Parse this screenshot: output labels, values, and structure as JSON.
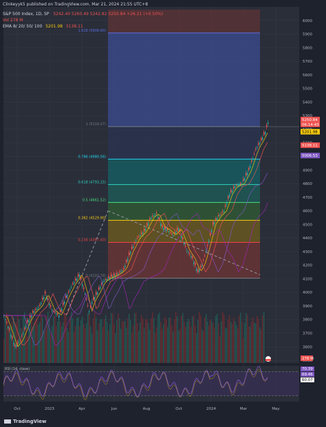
{
  "header": {
    "published": "Clinkeyyk5 published on TradingView.com, Mar 21, 2024 21:55 UTC+8",
    "symbol": "S&P 500 Index, 1D, SP",
    "ohlc": "5242.40  5260.49  5242.82  5250.84  +26.21 (+0.50%)",
    "vol": "Vol  278 M",
    "ema_label": "EMA 8/ 20/ 50/ 100",
    "ema_values": [
      "5201.98",
      "5138.11"
    ]
  },
  "brand": "TradingView",
  "colors": {
    "bg": "#1e222d",
    "grid": "#2a2e39",
    "up": "#26a69a",
    "down": "#ef5350"
  },
  "chart_data": [
    {
      "type": "candlestick",
      "title": "S&P 500 Index, 1D",
      "x": [
        "Oct",
        "2023",
        "Apr",
        "Jun",
        "Aug",
        "Oct",
        "2024",
        "Mar",
        "May"
      ],
      "ylim": [
        3480,
        6100
      ],
      "y_ticks": [
        3500,
        3600,
        3700,
        3800,
        3900,
        4000,
        4100,
        4200,
        4300,
        4400,
        4500,
        4600,
        4700,
        4800,
        4900,
        5000,
        5100,
        5200,
        5300,
        5400,
        5500,
        5600,
        5700,
        5800,
        5900,
        6000
      ],
      "fibonacci": [
        {
          "ratio": "1.618",
          "value": 5908.6,
          "color": "#5b6ee1"
        },
        {
          "ratio": "1",
          "value": 5219.27,
          "color": "#787b86"
        },
        {
          "ratio": "0.786",
          "value": 4980.56,
          "color": "#22d3ee"
        },
        {
          "ratio": "0.618",
          "value": 4793.15,
          "color": "#2dd4bf"
        },
        {
          "ratio": "0.5",
          "value": 4661.52,
          "color": "#4ade80"
        },
        {
          "ratio": "0.382",
          "value": 4529.9,
          "color": "#facc15"
        },
        {
          "ratio": "0.236",
          "value": 4367.4,
          "color": "#ef4444"
        },
        {
          "ratio": "0",
          "value": 4103.78,
          "color": "#787b86"
        }
      ],
      "price_labels": [
        {
          "value": 5250.84,
          "text": "5250.84",
          "sub": "06:14:43",
          "color": "#ef5350"
        },
        {
          "value": 5201.98,
          "text": "5201.98",
          "color": "#f6c90e"
        },
        {
          "value": 5138.11,
          "text": "5138.11",
          "color": "#ef5350"
        },
        {
          "value": 5006.53,
          "text": "5006.53",
          "color": "#7e57c2"
        }
      ],
      "close_path": [
        [
          0,
          3830
        ],
        [
          8,
          3720
        ],
        [
          16,
          3600
        ],
        [
          24,
          3650
        ],
        [
          34,
          3780
        ],
        [
          42,
          3850
        ],
        [
          52,
          3900
        ],
        [
          60,
          3990
        ],
        [
          70,
          3870
        ],
        [
          80,
          3830
        ],
        [
          90,
          3960
        ],
        [
          100,
          4060
        ],
        [
          110,
          4130
        ],
        [
          118,
          3990
        ],
        [
          124,
          3860
        ],
        [
          128,
          3930
        ],
        [
          136,
          4000
        ],
        [
          144,
          4080
        ],
        [
          154,
          4110
        ],
        [
          164,
          4130
        ],
        [
          174,
          4170
        ],
        [
          184,
          4300
        ],
        [
          194,
          4400
        ],
        [
          204,
          4450
        ],
        [
          214,
          4550
        ],
        [
          222,
          4580
        ],
        [
          230,
          4480
        ],
        [
          238,
          4460
        ],
        [
          246,
          4420
        ],
        [
          254,
          4470
        ],
        [
          260,
          4390
        ],
        [
          266,
          4310
        ],
        [
          274,
          4250
        ],
        [
          282,
          4150
        ],
        [
          288,
          4200
        ],
        [
          296,
          4340
        ],
        [
          304,
          4500
        ],
        [
          312,
          4560
        ],
        [
          320,
          4600
        ],
        [
          328,
          4720
        ],
        [
          336,
          4780
        ],
        [
          346,
          4800
        ],
        [
          356,
          4900
        ],
        [
          366,
          5050
        ],
        [
          374,
          5120
        ],
        [
          380,
          5180
        ],
        [
          384,
          5250
        ]
      ]
    },
    {
      "type": "bar",
      "title": "Volume",
      "series": [
        {
          "name": "Vol",
          "last_label": "278 M"
        }
      ]
    },
    {
      "type": "line",
      "title": "RSI (14, close)",
      "values_shown": [
        "70.39",
        "69.46",
        "60.07"
      ],
      "levels": [
        30,
        70
      ],
      "ylim": [
        20,
        80
      ]
    }
  ]
}
